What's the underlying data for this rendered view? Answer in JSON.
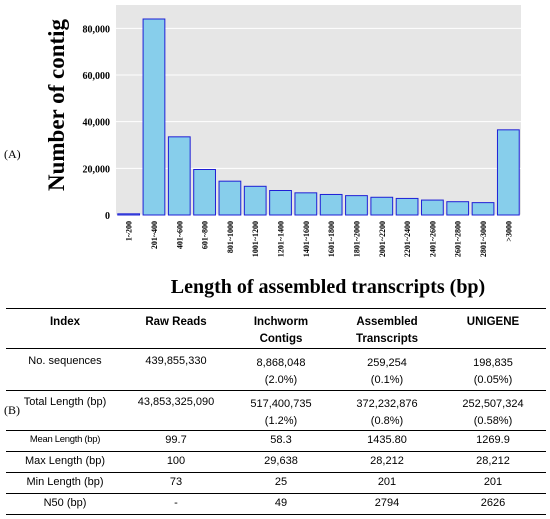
{
  "panel_labels": {
    "a": "(A)",
    "b": "(B)"
  },
  "chart_data": {
    "type": "bar",
    "title": "",
    "xlabel": "Length of assembled transcripts (bp)",
    "ylabel": "Number of contig",
    "ylim": [
      0,
      90000
    ],
    "yticks": [
      0,
      20000,
      40000,
      60000,
      80000
    ],
    "ytick_labels": [
      "0",
      "20,000",
      "40,000",
      "60,000",
      "80,000"
    ],
    "grid": true,
    "bar_color": "#87ceeb",
    "bar_edge": "#1f1fd6",
    "plot_bg": "#e6e6e6",
    "categories": [
      "1~200",
      "201~400",
      "401~600",
      "601~800",
      "801~1000",
      "1001~1200",
      "1201~1400",
      "1401~1600",
      "1601~1800",
      "1801~2000",
      "2001~2200",
      "2201~2400",
      "2401~2600",
      "2601~2800",
      "2801~3000",
      ">3000"
    ],
    "values": [
      500,
      84000,
      33500,
      19500,
      14500,
      12300,
      10500,
      9500,
      8800,
      8300,
      7600,
      7100,
      6400,
      5700,
      5300,
      36500
    ]
  },
  "table": {
    "headers": [
      "Index",
      "Raw Reads",
      "Inchworm Contigs",
      "Assembled Transcripts",
      "UNIGENE"
    ],
    "header_lines": [
      [
        "Index"
      ],
      [
        "Raw Reads"
      ],
      [
        "Inchworm",
        "Contigs"
      ],
      [
        "Assembled",
        "Transcripts"
      ],
      [
        "UNIGENE"
      ]
    ],
    "rows": [
      {
        "label": "No. sequences",
        "cells": [
          [
            "439,855,330"
          ],
          [
            "8,868,048",
            "(2.0%)"
          ],
          [
            "259,254",
            "(0.1%)"
          ],
          [
            "198,835",
            "(0.05%)"
          ]
        ]
      },
      {
        "label": "Total Length (bp)",
        "cells": [
          [
            "43,853,325,090"
          ],
          [
            "517,400,735",
            "(1.2%)"
          ],
          [
            "372,232,876",
            "(0.8%)"
          ],
          [
            "252,507,324",
            "(0.58%)"
          ]
        ]
      },
      {
        "label": "Mean Length (bp)",
        "cells": [
          [
            "99.7"
          ],
          [
            "58.3"
          ],
          [
            "1435.80"
          ],
          [
            "1269.9"
          ]
        ]
      },
      {
        "label": "Max Length (bp)",
        "cells": [
          [
            "100"
          ],
          [
            "29,638"
          ],
          [
            "28,212"
          ],
          [
            "28,212"
          ]
        ]
      },
      {
        "label": "Min Length (bp)",
        "cells": [
          [
            "73"
          ],
          [
            "25"
          ],
          [
            "201"
          ],
          [
            "201"
          ]
        ]
      },
      {
        "label": "N50 (bp)",
        "cells": [
          [
            "-"
          ],
          [
            "49"
          ],
          [
            "2794"
          ],
          [
            "2626"
          ]
        ]
      }
    ]
  }
}
